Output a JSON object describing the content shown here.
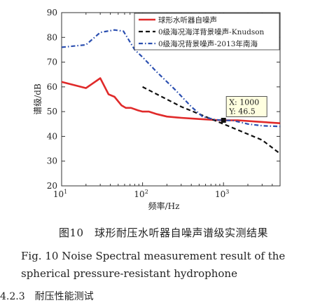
{
  "chart_data": {
    "type": "line",
    "xscale": "log",
    "xlim": [
      10,
      5000
    ],
    "ylim": [
      20,
      90
    ],
    "yticks": [
      20,
      30,
      40,
      50,
      60,
      70,
      80,
      90
    ],
    "xticks": [
      {
        "value": 10,
        "base": "10",
        "exp": "1"
      },
      {
        "value": 100,
        "base": "10",
        "exp": "2"
      },
      {
        "value": 1000,
        "base": "10",
        "exp": "3"
      }
    ],
    "xlabel": "频率/Hz",
    "ylabel": "谱级/dB",
    "legend_position": "top-right",
    "series": [
      {
        "name": "球形水听器自噪声",
        "color": "#e02a2a",
        "style": "solid",
        "points": [
          [
            10,
            62
          ],
          [
            20,
            59.5
          ],
          [
            30,
            63.5
          ],
          [
            38,
            57
          ],
          [
            45,
            56
          ],
          [
            55,
            52.5
          ],
          [
            62,
            51.5
          ],
          [
            72,
            51.5
          ],
          [
            88,
            50.5
          ],
          [
            100,
            50
          ],
          [
            120,
            50
          ],
          [
            150,
            49
          ],
          [
            200,
            48
          ],
          [
            300,
            47.5
          ],
          [
            500,
            47
          ],
          [
            800,
            46.6
          ],
          [
            1000,
            46.5
          ],
          [
            1500,
            46.5
          ],
          [
            2500,
            46
          ],
          [
            5000,
            45.3
          ]
        ]
      },
      {
        "name": "0级海况海洋背景噪声-Knudson",
        "color": "#111111",
        "style": "dashed",
        "points": [
          [
            100,
            60
          ],
          [
            300,
            52
          ],
          [
            1000,
            45
          ],
          [
            3000,
            38.5
          ],
          [
            5000,
            33
          ]
        ]
      },
      {
        "name": "0级海况背景噪声-2013年南海",
        "color": "#2b4fb0",
        "style": "dashdot",
        "points": [
          [
            10,
            76
          ],
          [
            20,
            77
          ],
          [
            30,
            82
          ],
          [
            45,
            83
          ],
          [
            58,
            82.5
          ],
          [
            80,
            75
          ],
          [
            100,
            72
          ],
          [
            150,
            66
          ],
          [
            250,
            59
          ],
          [
            400,
            52
          ],
          [
            550,
            48
          ],
          [
            800,
            46.7
          ],
          [
            1000,
            46.5
          ],
          [
            1300,
            46.4
          ],
          [
            2000,
            45
          ],
          [
            3000,
            44.3
          ],
          [
            5000,
            44
          ]
        ]
      }
    ],
    "annotation": {
      "x": 1000,
      "y": 46.5,
      "line1": "X: 1000",
      "line2": "Y: 46.5"
    }
  },
  "caption": {
    "chinese": "图10　球形耐压水听器自噪声谱级实测结果",
    "english_line1": "Fig. 10  Noise Spectral measurement result of the",
    "english_line2": "spherical pressure-resistant hydrophone"
  },
  "section_heading": "4.2.3　耐压性能测试"
}
